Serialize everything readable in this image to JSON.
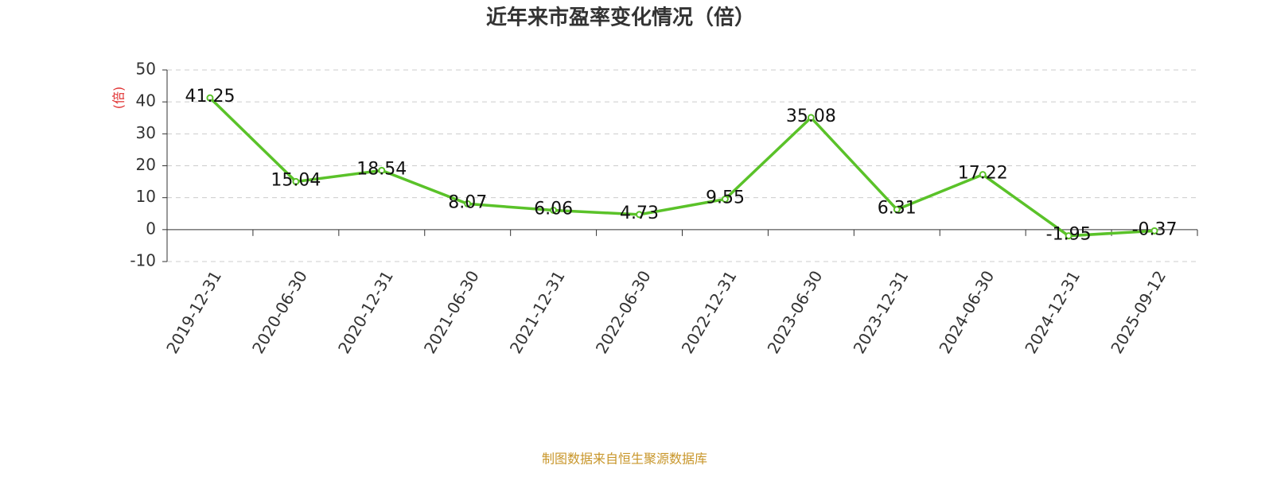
{
  "chart_data": {
    "type": "line",
    "title": "近年来市盈率变化情况（倍）",
    "ylabel": "(倍)",
    "categories": [
      "2019-12-31",
      "2020-06-30",
      "2020-12-31",
      "2021-06-30",
      "2021-12-31",
      "2022-06-30",
      "2022-12-31",
      "2023-06-30",
      "2023-12-31",
      "2024-06-30",
      "2024-12-31",
      "2025-09-12"
    ],
    "values": [
      41.25,
      15.04,
      18.54,
      8.07,
      6.06,
      4.73,
      9.55,
      35.08,
      6.31,
      17.22,
      -1.95,
      -0.37
    ],
    "color": "#5ac229",
    "ylim": [
      -10,
      50
    ],
    "yticks": [
      -10,
      0,
      10,
      20,
      30,
      40,
      50
    ],
    "grid": true,
    "source": "制图数据来自恒生聚源数据库"
  }
}
